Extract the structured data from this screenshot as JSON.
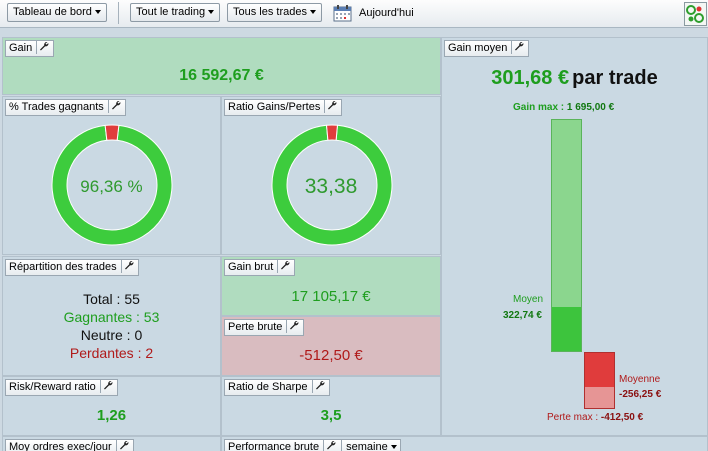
{
  "toolbar": {
    "dashboard_label": "Tableau de bord",
    "trading_filter_label": "Tout le trading",
    "trades_filter_label": "Tous les trades",
    "today_label": "Aujourd'hui"
  },
  "gain": {
    "title": "Gain",
    "value": "16 592,67 €"
  },
  "gain_moyen": {
    "title": "Gain moyen",
    "value": "301,68 €",
    "suffix": "par trade",
    "gain_max_label": "Gain max : ",
    "gain_max_value": "1 695,00 €",
    "moyen_label": "Moyen",
    "moyen_value": "322,74 €",
    "moyenne_label": "Moyenne",
    "moyenne_value": "-256,25 €",
    "perte_max_label": "Perte max : ",
    "perte_max_value": "-412,50 €",
    "colors": {
      "gain_light": "#8bd68e",
      "gain_dark": "#3dc43d",
      "loss_dark": "#e03c3c",
      "loss_light": "#e69595"
    }
  },
  "trades_gagnants": {
    "title": "% Trades gagnants",
    "value": "96,36 %",
    "win_fraction": 0.9636
  },
  "ratio_gains_pertes": {
    "title": "Ratio Gains/Pertes",
    "value": "33,38",
    "win_fraction": 0.971
  },
  "repartition": {
    "title": "Répartition des trades",
    "total_label": "Total : 55",
    "gagnantes_label": "Gagnantes : 53",
    "neutre_label": "Neutre : 0",
    "perdantes_label": "Perdantes : 2"
  },
  "gain_brut": {
    "title": "Gain brut",
    "value": "17 105,17 €"
  },
  "perte_brute": {
    "title": "Perte brute",
    "value": "-512,50 €"
  },
  "risk_reward": {
    "title": "Risk/Reward ratio",
    "value": "1,26"
  },
  "sharpe": {
    "title": "Ratio de Sharpe",
    "value": "3,5"
  },
  "moy_ordres": {
    "title": "Moy ordres exec/jour"
  },
  "perf_brute": {
    "title": "Performance brute",
    "period": "semaine"
  },
  "colors": {
    "win": "#3dcc3d",
    "loss": "#e03c3c",
    "green_text": "#1e9e1e",
    "red_text": "#b01a1a"
  }
}
